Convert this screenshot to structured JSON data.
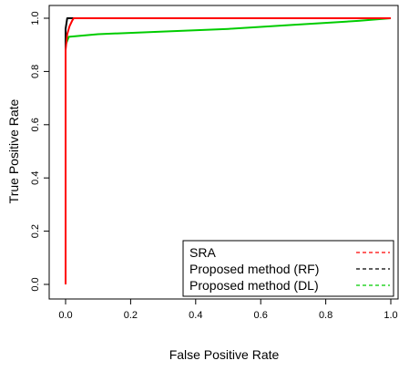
{
  "chart_data": {
    "type": "line",
    "title": "",
    "xlabel": "False Positive Rate",
    "ylabel": "True Positive Rate",
    "xlim": [
      0,
      1
    ],
    "ylim": [
      0,
      1
    ],
    "x_ticks": [
      "0.0",
      "0.2",
      "0.4",
      "0.6",
      "0.8",
      "1.0"
    ],
    "y_ticks": [
      "0.0",
      "0.2",
      "0.4",
      "0.6",
      "0.8",
      "1.0"
    ],
    "grid": false,
    "legend_position": "bottom-right",
    "series": [
      {
        "name": "SRA",
        "color": "#ff0000",
        "line_style": "dashed",
        "points": [
          [
            0.0,
            0.0
          ],
          [
            0.0,
            0.88
          ],
          [
            0.005,
            0.94
          ],
          [
            0.012,
            0.97
          ],
          [
            0.02,
            0.99
          ],
          [
            0.025,
            1.0
          ],
          [
            1.0,
            1.0
          ]
        ]
      },
      {
        "name": "Proposed method (RF)",
        "color": "#000000",
        "line_style": "dashed",
        "points": [
          [
            0.0,
            0.0
          ],
          [
            0.0,
            0.96
          ],
          [
            0.005,
            1.0
          ],
          [
            1.0,
            1.0
          ]
        ]
      },
      {
        "name": "Proposed method (DL)",
        "color": "#00cc00",
        "line_style": "dashed",
        "points": [
          [
            0.0,
            0.0
          ],
          [
            0.0,
            0.9
          ],
          [
            0.01,
            0.93
          ],
          [
            0.1,
            0.94
          ],
          [
            0.3,
            0.95
          ],
          [
            0.5,
            0.96
          ],
          [
            0.7,
            0.975
          ],
          [
            0.9,
            0.99
          ],
          [
            1.0,
            1.0
          ]
        ]
      }
    ]
  }
}
